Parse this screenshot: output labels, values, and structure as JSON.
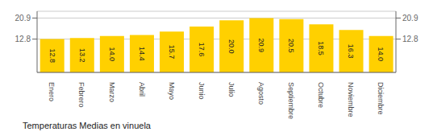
{
  "chart_data": {
    "type": "bar",
    "title": "Temperaturas Medias en vinuela",
    "categories": [
      "Enero",
      "Febrero",
      "Marzo",
      "Abril",
      "Mayo",
      "Junio",
      "Julio",
      "Agosto",
      "Septiembre",
      "Octubre",
      "Noviembre",
      "Diciembre"
    ],
    "values": [
      12.8,
      13.2,
      14.0,
      14.4,
      15.7,
      17.6,
      20.0,
      20.9,
      20.5,
      18.5,
      16.3,
      14.0
    ],
    "value_labels": [
      "12.8",
      "13.2",
      "14.0",
      "14.4",
      "15.7",
      "17.6",
      "20.0",
      "20.9",
      "20.5",
      "18.5",
      "16.3",
      "14.0"
    ],
    "color": "#FFD000",
    "ylim": [
      0,
      23.5
    ],
    "yticks": [
      12.8,
      20.9
    ],
    "y2lim": [
      0,
      23.5
    ],
    "y2ticks": [
      12.8,
      20.9
    ],
    "grid": true,
    "data_labels": true
  }
}
